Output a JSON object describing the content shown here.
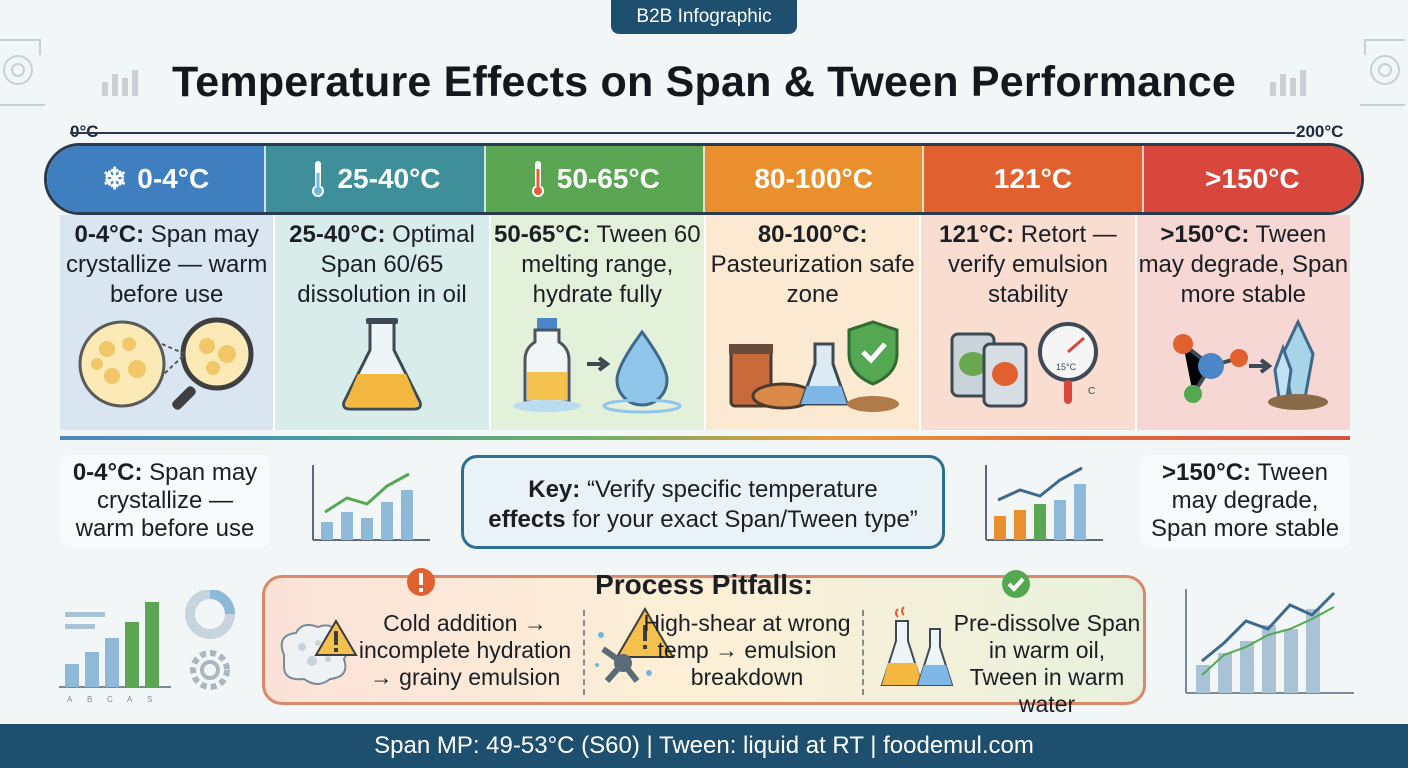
{
  "tag": "B2B Infographic",
  "title": "Temperature Effects on Span & Tween Performance",
  "scale": {
    "min": "0°C",
    "max": "200°C"
  },
  "bands": [
    {
      "label": "0-4°C",
      "icon": "snowflake-icon",
      "color": "#3f7fbf",
      "bg": "#d9e6f1",
      "lead": "0-4°C:",
      "text": " Span may crystallize — warm before use"
    },
    {
      "label": "25-40°C",
      "icon": "thermometer-icon",
      "color": "#3f8f9a",
      "bg": "#d8ecea",
      "lead": "25-40°C:",
      "text": " Optimal Span 60/65 dissolution in oil"
    },
    {
      "label": "50-65°C",
      "icon": "thermometer-icon",
      "color": "#5aa653",
      "bg": "#e3f0da",
      "lead": "50-65°C:",
      "text": " Tween 60 melting range, hydrate fully"
    },
    {
      "label": "80-100°C",
      "icon": "none",
      "color": "#e98f2e",
      "bg": "#fbe9d2",
      "lead": "80-100°C:",
      "text": " Pasteurization safe zone"
    },
    {
      "label": "121°C",
      "icon": "none",
      "color": "#e0612f",
      "bg": "#f8ddd0",
      "lead": "121°C:",
      "text": " Retort — verify emulsion stability"
    },
    {
      "label": ">150°C",
      "icon": "none",
      "color": "#d9463c",
      "bg": "#f6d7d3",
      "lead": ">150°C:",
      "text": " Tween may degrade, Span more stable"
    }
  ],
  "side_left": {
    "lead": "0-4°C:",
    "text": " Span may crystallize — warm before use"
  },
  "side_right": {
    "lead": ">150°C:",
    "text": " Tween may degrade, Span more stable"
  },
  "key": {
    "lead": "Key:",
    "text1": " “Verify specific temperature",
    "lead2": "effects",
    "text2": " for your exact Span/Tween type”"
  },
  "pitfalls": {
    "title": "Process Pitfalls:",
    "items": [
      {
        "text": "Cold addition → incomplete hydration → grainy emulsion"
      },
      {
        "text": "High-shear at wrong temp → emulsion breakdown"
      },
      {
        "text": "Pre-dissolve Span in warm oil, Tween in warm water"
      }
    ]
  },
  "gauge_label": "15°C",
  "gauge_unit": "C",
  "chart_axis_labels": [
    "A",
    "B",
    "C",
    "A",
    "S"
  ],
  "footer": "Span MP: 49-53°C (S60) | Tween: liquid at RT | foodemul.com"
}
